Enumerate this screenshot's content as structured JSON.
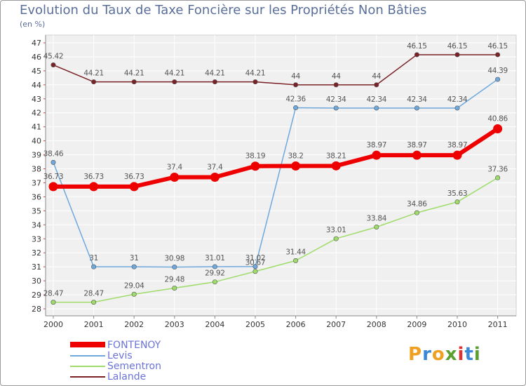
{
  "chart_data": {
    "type": "line",
    "title": "Evolution du Taux de Taxe Foncière sur les Propriétés Non Bâties",
    "subtitle": "(en %)",
    "categories": [
      "2000",
      "2001",
      "2002",
      "2003",
      "2004",
      "2005",
      "2006",
      "2007",
      "2008",
      "2009",
      "2010",
      "2011"
    ],
    "ylim": [
      28,
      47
    ],
    "yticks": [
      28,
      29,
      30,
      31,
      32,
      33,
      34,
      35,
      36,
      37,
      38,
      39,
      40,
      41,
      42,
      43,
      44,
      45,
      46,
      47
    ],
    "series": [
      {
        "name": "Lalande",
        "color": "#7b2226",
        "values": [
          45.42,
          44.21,
          44.21,
          44.21,
          44.21,
          44.21,
          44,
          44,
          44,
          46.15,
          46.15,
          46.15
        ],
        "labels": [
          "45.42",
          "44.21",
          "44.21",
          "44.21",
          "44.21",
          "44.21",
          "44",
          "44",
          "44",
          "46.15",
          "46.15",
          "46.15"
        ]
      },
      {
        "name": "Sementron",
        "color": "#9fdc6a",
        "values": [
          28.47,
          28.47,
          29.04,
          29.48,
          29.92,
          30.67,
          31.44,
          33.01,
          33.84,
          34.86,
          35.63,
          37.36
        ],
        "labels": [
          "28.47",
          "28.47",
          "29.04",
          "29.48",
          "29.92",
          "30.67",
          "31.44",
          "33.01",
          "33.84",
          "34.86",
          "35.63",
          "37.36"
        ]
      },
      {
        "name": "Levis",
        "color": "#6ea8dc",
        "values": [
          38.46,
          31,
          31,
          30.98,
          31.01,
          31.02,
          42.36,
          42.34,
          42.34,
          42.34,
          42.34,
          44.39
        ],
        "labels": [
          "38.46",
          "31",
          "31",
          "30.98",
          "31.01",
          "31.02",
          "42.36",
          "42.34",
          "42.34",
          "42.34",
          "42.34",
          "44.39"
        ]
      },
      {
        "name": "FONTENOY",
        "color": "#ee0000",
        "values": [
          36.73,
          36.73,
          36.73,
          37.4,
          37.4,
          38.19,
          38.2,
          38.21,
          38.97,
          38.97,
          38.97,
          40.86
        ],
        "labels": [
          "36.73",
          "36.73",
          "36.73",
          "37.4",
          "37.4",
          "38.19",
          "38.2",
          "38.21",
          "38.97",
          "38.97",
          "38.97",
          "40.86"
        ]
      }
    ],
    "legend": [
      "FONTENOY",
      "Levis",
      "Sementron",
      "Lalande"
    ]
  },
  "logo": {
    "chars": [
      "P",
      "r",
      "o",
      "x",
      "i",
      "t",
      "i"
    ],
    "colors": [
      "#f0a020",
      "#3a88d8",
      "#f0a020",
      "#5aa030",
      "#e03030",
      "#3a88d8",
      "#5aa030"
    ]
  }
}
